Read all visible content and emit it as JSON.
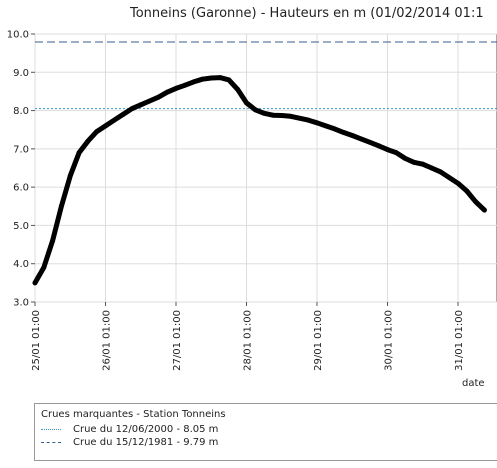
{
  "chart_data": {
    "type": "line",
    "title": "Tonneins (Garonne) - Hauteurs en m (01/02/2014 01:1",
    "xlabel": "date",
    "ylabel": "",
    "x_ticks": [
      "25/01 01:00",
      "26/01 01:00",
      "27/01 01:00",
      "28/01 01:00",
      "29/01 01:00",
      "30/01 01:00",
      "31/01 01:00"
    ],
    "xlim": [
      "25/01 01:00",
      "31/01 10:00"
    ],
    "y_ticks": [
      "3.0",
      "4.0",
      "5.0",
      "6.0",
      "7.0",
      "8.0",
      "9.0",
      "10.0"
    ],
    "ylim": [
      3.0,
      10.0
    ],
    "grid": true,
    "series": [
      {
        "name": "",
        "color": "#000000",
        "x": [
          "25/01 01:00",
          "25/01 04:00",
          "25/01 07:00",
          "25/01 10:00",
          "25/01 13:00",
          "25/01 16:00",
          "25/01 19:00",
          "25/01 22:00",
          "26/01 01:00",
          "26/01 04:00",
          "26/01 07:00",
          "26/01 10:00",
          "26/01 13:00",
          "26/01 16:00",
          "26/01 19:00",
          "26/01 22:00",
          "27/01 01:00",
          "27/01 04:00",
          "27/01 07:00",
          "27/01 10:00",
          "27/01 13:00",
          "27/01 16:00",
          "27/01 19:00",
          "27/01 22:00",
          "28/01 01:00",
          "28/01 04:00",
          "28/01 07:00",
          "28/01 10:00",
          "28/01 13:00",
          "28/01 16:00",
          "28/01 19:00",
          "28/01 22:00",
          "29/01 01:00",
          "29/01 04:00",
          "29/01 07:00",
          "29/01 10:00",
          "29/01 13:00",
          "29/01 16:00",
          "29/01 19:00",
          "29/01 22:00",
          "30/01 01:00",
          "30/01 04:00",
          "30/01 07:00",
          "30/01 10:00",
          "30/01 13:00",
          "30/01 16:00",
          "30/01 19:00",
          "30/01 22:00",
          "31/01 01:00",
          "31/01 04:00",
          "31/01 07:00",
          "31/01 10:00"
        ],
        "y": [
          3.5,
          3.9,
          4.6,
          5.5,
          6.3,
          6.9,
          7.2,
          7.45,
          7.6,
          7.75,
          7.9,
          8.05,
          8.15,
          8.25,
          8.35,
          8.48,
          8.58,
          8.66,
          8.75,
          8.82,
          8.85,
          8.86,
          8.8,
          8.55,
          8.2,
          8.02,
          7.93,
          7.88,
          7.87,
          7.85,
          7.8,
          7.75,
          7.68,
          7.6,
          7.52,
          7.43,
          7.35,
          7.26,
          7.17,
          7.08,
          6.98,
          6.9,
          6.75,
          6.65,
          6.6,
          6.5,
          6.4,
          6.25,
          6.1,
          5.9,
          5.62,
          5.4
        ]
      }
    ],
    "reference_lines": [
      {
        "label": "Crue du 12/06/2000 - 8.05 m",
        "value": 8.05,
        "color": "#3399cc",
        "style": "dotted"
      },
      {
        "label": "Crue du 15/12/1981 - 9.79 m",
        "value": 9.79,
        "color": "#3a5f8c",
        "style": "dashed"
      }
    ]
  },
  "legend": {
    "title": "Crues marquantes - Station Tonneins",
    "items": [
      {
        "label": "Crue du 12/06/2000 - 8.05 m"
      },
      {
        "label": "Crue du 15/12/1981 - 9.79 m"
      }
    ]
  }
}
